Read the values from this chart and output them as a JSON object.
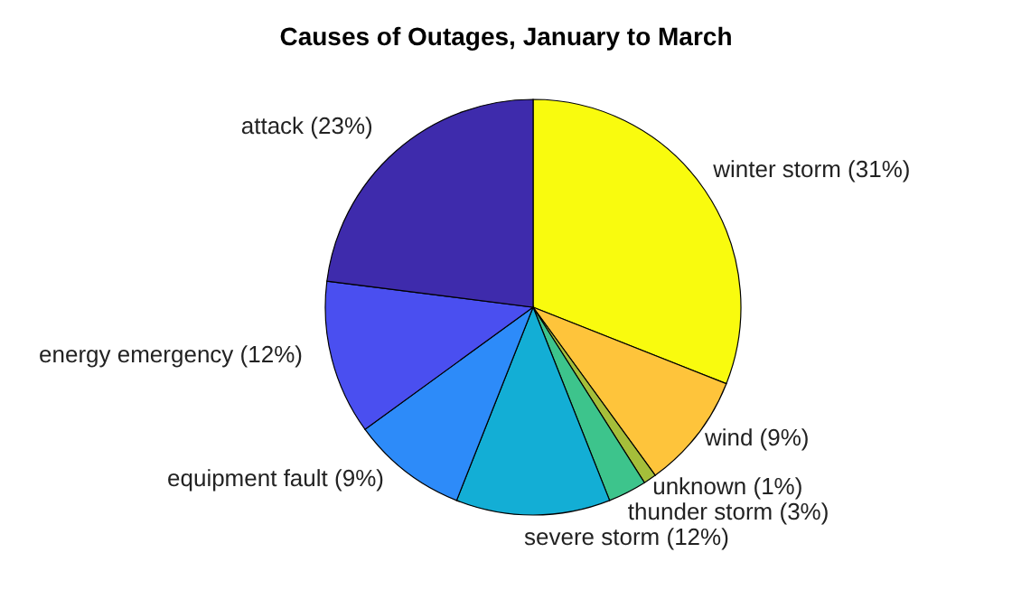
{
  "chart_data": {
    "type": "pie",
    "title": "Causes of Outages, January to March",
    "categories": [
      "winter storm (31%)",
      "wind (9%)",
      "unknown (1%)",
      "thunder storm (3%)",
      "severe storm (12%)",
      "equipment fault (9%)",
      "energy emergency (12%)",
      "attack (23%)"
    ],
    "values": [
      31,
      9,
      1,
      3,
      12,
      9,
      12,
      23
    ],
    "colors": [
      "#f9fb0e",
      "#fec43b",
      "#a5be3a",
      "#3dc48c",
      "#13aed5",
      "#2d8bf9",
      "#4a4ff0",
      "#3e2bac"
    ],
    "legend": false
  }
}
